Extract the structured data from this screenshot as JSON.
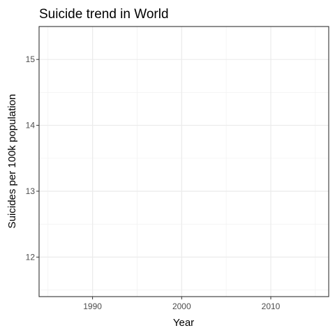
{
  "chart_data": {
    "type": "line",
    "title": "Suicide trend in World",
    "xlabel": "Year",
    "ylabel": "Suicides per 100k population",
    "xlim": [
      1984,
      2016.5
    ],
    "ylim": [
      11.4,
      15.5
    ],
    "x_major_ticks": [
      1990,
      2000,
      2010
    ],
    "x_minor_ticks": [
      1985,
      1995,
      2005,
      2015
    ],
    "y_major_ticks": [
      12,
      13,
      14,
      15
    ],
    "y_minor_ticks": [
      11.5,
      12.5,
      13.5,
      14.5,
      15.5
    ],
    "x_tick_labels": [
      "1990",
      "2000",
      "2010"
    ],
    "y_tick_labels": [
      "12",
      "13",
      "14",
      "15"
    ],
    "grid": true,
    "series": [
      {
        "name": "World",
        "x": [],
        "y": []
      }
    ],
    "colors": {
      "panel_border": "#333333",
      "grid_major": "#ebebeb",
      "grid_minor": "#f2f2f2"
    }
  }
}
